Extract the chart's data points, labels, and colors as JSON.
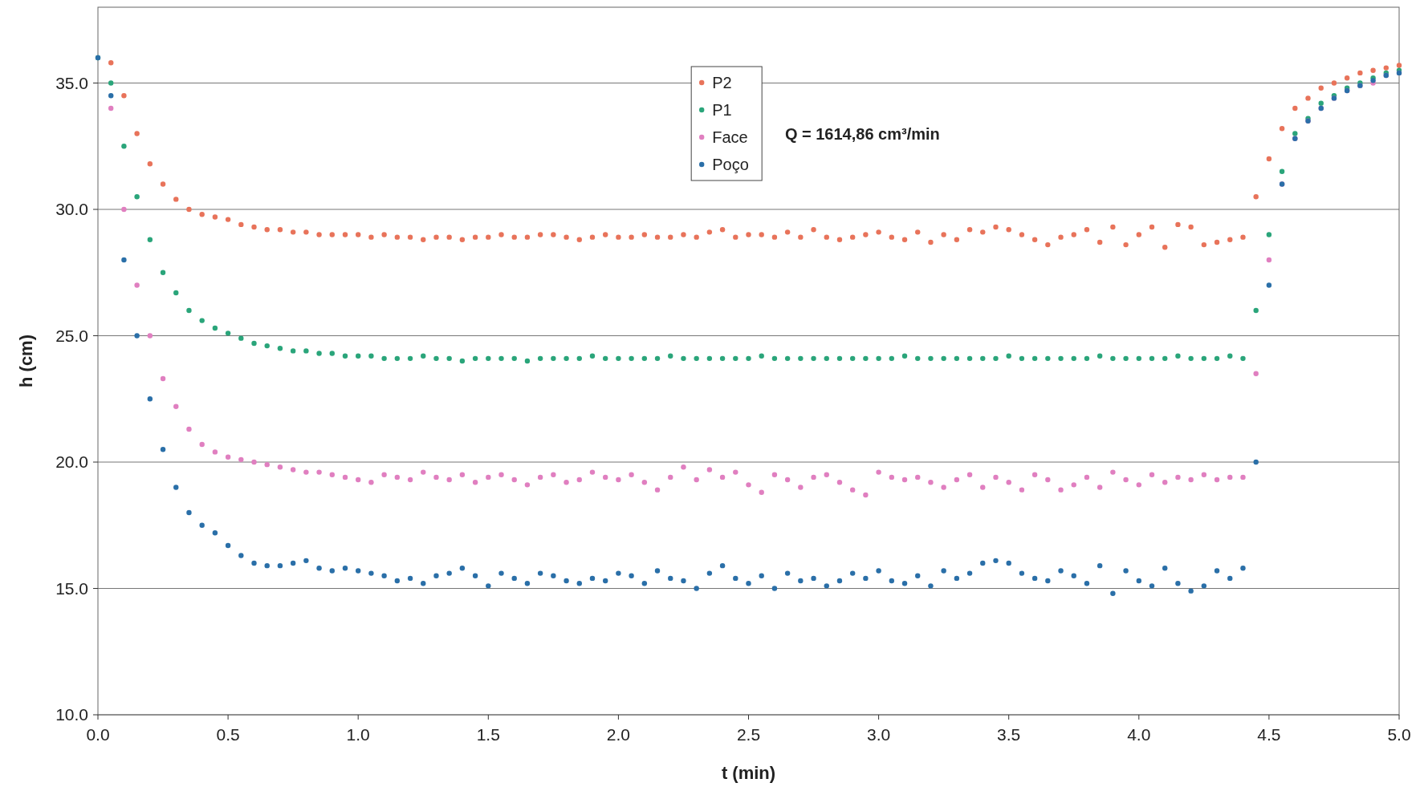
{
  "chart_data": {
    "type": "scatter",
    "xlabel": "t (min)",
    "ylabel": "h (cm)",
    "annotations": [
      "Q = 1614,86 cm³/min"
    ],
    "x": [
      0,
      0.05,
      0.1,
      0.15,
      0.2,
      0.25,
      0.3,
      0.35,
      0.4,
      0.45,
      0.5,
      0.55,
      0.6,
      0.65,
      0.7,
      0.75,
      0.8,
      0.85,
      0.9,
      0.95,
      1,
      1.05,
      1.1,
      1.15,
      1.2,
      1.25,
      1.3,
      1.35,
      1.4,
      1.45,
      1.5,
      1.55,
      1.6,
      1.65,
      1.7,
      1.75,
      1.8,
      1.85,
      1.9,
      1.95,
      2,
      2.05,
      2.1,
      2.15,
      2.2,
      2.25,
      2.3,
      2.35,
      2.4,
      2.45,
      2.5,
      2.55,
      2.6,
      2.65,
      2.7,
      2.75,
      2.8,
      2.85,
      2.9,
      2.95,
      3,
      3.05,
      3.1,
      3.15,
      3.2,
      3.25,
      3.3,
      3.35,
      3.4,
      3.45,
      3.5,
      3.55,
      3.6,
      3.65,
      3.7,
      3.75,
      3.8,
      3.85,
      3.9,
      3.95,
      4,
      4.05,
      4.1,
      4.15,
      4.2,
      4.25,
      4.3,
      4.35,
      4.4,
      4.45,
      4.5,
      4.55,
      4.6,
      4.65,
      4.7,
      4.75,
      4.8,
      4.85,
      4.9,
      4.95,
      5
    ],
    "series": [
      {
        "name": "P2",
        "color": "#e8735a",
        "values": [
          null,
          35.8,
          34.5,
          33,
          31.8,
          31,
          30.4,
          30,
          29.8,
          29.7,
          29.6,
          29.4,
          29.3,
          29.2,
          29.2,
          29.1,
          29.1,
          29.0,
          29.0,
          29.0,
          29.0,
          28.9,
          29.0,
          28.9,
          28.9,
          28.8,
          28.9,
          28.9,
          28.8,
          28.9,
          28.9,
          29.0,
          28.9,
          28.9,
          29.0,
          29.0,
          28.9,
          28.8,
          28.9,
          29.0,
          28.9,
          28.9,
          29.0,
          28.9,
          28.9,
          29.0,
          28.9,
          29.1,
          29.2,
          28.9,
          29.0,
          29.0,
          28.9,
          29.1,
          28.9,
          29.2,
          28.9,
          28.8,
          28.9,
          29.0,
          29.1,
          28.9,
          28.8,
          29.1,
          28.7,
          29.0,
          28.8,
          29.2,
          29.1,
          29.3,
          29.2,
          29.0,
          28.8,
          28.6,
          28.9,
          29.0,
          29.2,
          28.7,
          29.3,
          28.6,
          29.0,
          29.3,
          28.5,
          29.4,
          29.3,
          28.6,
          28.7,
          28.8,
          28.9,
          30.5,
          32,
          33.2,
          34,
          34.4,
          34.8,
          35.0,
          35.2,
          35.4,
          35.5,
          35.6,
          35.7
        ]
      },
      {
        "name": "P1",
        "color": "#2aa57a",
        "values": [
          36,
          35,
          32.5,
          30.5,
          28.8,
          27.5,
          26.7,
          26,
          25.6,
          25.3,
          25.1,
          24.9,
          24.7,
          24.6,
          24.5,
          24.4,
          24.4,
          24.3,
          24.3,
          24.2,
          24.2,
          24.2,
          24.1,
          24.1,
          24.1,
          24.2,
          24.1,
          24.1,
          24.0,
          24.1,
          24.1,
          24.1,
          24.1,
          24.0,
          24.1,
          24.1,
          24.1,
          24.1,
          24.2,
          24.1,
          24.1,
          24.1,
          24.1,
          24.1,
          24.2,
          24.1,
          24.1,
          24.1,
          24.1,
          24.1,
          24.1,
          24.2,
          24.1,
          24.1,
          24.1,
          24.1,
          24.1,
          24.1,
          24.1,
          24.1,
          24.1,
          24.1,
          24.2,
          24.1,
          24.1,
          24.1,
          24.1,
          24.1,
          24.1,
          24.1,
          24.2,
          24.1,
          24.1,
          24.1,
          24.1,
          24.1,
          24.1,
          24.2,
          24.1,
          24.1,
          24.1,
          24.1,
          24.1,
          24.2,
          24.1,
          24.1,
          24.1,
          24.2,
          24.1,
          26,
          29,
          31.5,
          33,
          33.6,
          34.2,
          34.5,
          34.8,
          35.0,
          35.2,
          35.4,
          35.5
        ]
      },
      {
        "name": "Face",
        "color": "#e07fc0",
        "values": [
          null,
          34,
          30,
          27,
          25,
          23.3,
          22.2,
          21.3,
          20.7,
          20.4,
          20.2,
          20.1,
          20.0,
          19.9,
          19.8,
          19.7,
          19.6,
          19.6,
          19.5,
          19.4,
          19.3,
          19.2,
          19.5,
          19.4,
          19.3,
          19.6,
          19.4,
          19.3,
          19.5,
          19.2,
          19.4,
          19.5,
          19.3,
          19.1,
          19.4,
          19.5,
          19.2,
          19.3,
          19.6,
          19.4,
          19.3,
          19.5,
          19.2,
          18.9,
          19.4,
          19.8,
          19.3,
          19.7,
          19.4,
          19.6,
          19.1,
          18.8,
          19.5,
          19.3,
          19.0,
          19.4,
          19.5,
          19.2,
          18.9,
          18.7,
          19.6,
          19.4,
          19.3,
          19.4,
          19.2,
          19.0,
          19.3,
          19.5,
          19.0,
          19.4,
          19.2,
          18.9,
          19.5,
          19.3,
          18.9,
          19.1,
          19.4,
          19.0,
          19.6,
          19.3,
          19.1,
          19.5,
          19.2,
          19.4,
          19.3,
          19.5,
          19.3,
          19.4,
          19.4,
          23.5,
          28,
          31,
          32.8,
          33.5,
          34,
          34.4,
          34.7,
          34.9,
          35.0,
          35.3,
          35.4
        ]
      },
      {
        "name": "Poço",
        "color": "#2a6fa8",
        "values": [
          36,
          34.5,
          28,
          25,
          22.5,
          20.5,
          19,
          18,
          17.5,
          17.2,
          16.7,
          16.3,
          16.0,
          15.9,
          15.9,
          16.0,
          16.1,
          15.8,
          15.7,
          15.8,
          15.7,
          15.6,
          15.5,
          15.3,
          15.4,
          15.2,
          15.5,
          15.6,
          15.8,
          15.5,
          15.1,
          15.6,
          15.4,
          15.2,
          15.6,
          15.5,
          15.3,
          15.2,
          15.4,
          15.3,
          15.6,
          15.5,
          15.2,
          15.7,
          15.4,
          15.3,
          15.0,
          15.6,
          15.9,
          15.4,
          15.2,
          15.5,
          15.0,
          15.6,
          15.3,
          15.4,
          15.1,
          15.3,
          15.6,
          15.4,
          15.7,
          15.3,
          15.2,
          15.5,
          15.1,
          15.7,
          15.4,
          15.6,
          16.0,
          16.1,
          16.0,
          15.6,
          15.4,
          15.3,
          15.7,
          15.5,
          15.2,
          15.9,
          14.8,
          15.7,
          15.3,
          15.1,
          15.8,
          15.2,
          14.9,
          15.1,
          15.7,
          15.4,
          15.8,
          20,
          27,
          31,
          32.8,
          33.5,
          34,
          34.4,
          34.7,
          34.9,
          35.1,
          35.3,
          35.4
        ]
      }
    ],
    "xlim": [
      0,
      5
    ],
    "ylim": [
      10,
      38
    ],
    "xticks": [
      {
        "value": 0,
        "label": "0.0"
      },
      {
        "value": 0.5,
        "label": "0.5"
      },
      {
        "value": 1,
        "label": "1.0"
      },
      {
        "value": 1.5,
        "label": "1.5"
      },
      {
        "value": 2,
        "label": "2.0"
      },
      {
        "value": 2.5,
        "label": "2.5"
      },
      {
        "value": 3,
        "label": "3.0"
      },
      {
        "value": 3.5,
        "label": "3.5"
      },
      {
        "value": 4,
        "label": "4.0"
      },
      {
        "value": 4.5,
        "label": "4.5"
      },
      {
        "value": 5,
        "label": "5.0"
      }
    ],
    "yticks": [
      {
        "value": 10,
        "label": "10.0"
      },
      {
        "value": 15,
        "label": "15.0"
      },
      {
        "value": 20,
        "label": "20.0"
      },
      {
        "value": 25,
        "label": "25.0"
      },
      {
        "value": 30,
        "label": "30.0"
      },
      {
        "value": 35,
        "label": "35.0"
      }
    ],
    "grid": "y",
    "legend": "top",
    "marker": "circle"
  }
}
